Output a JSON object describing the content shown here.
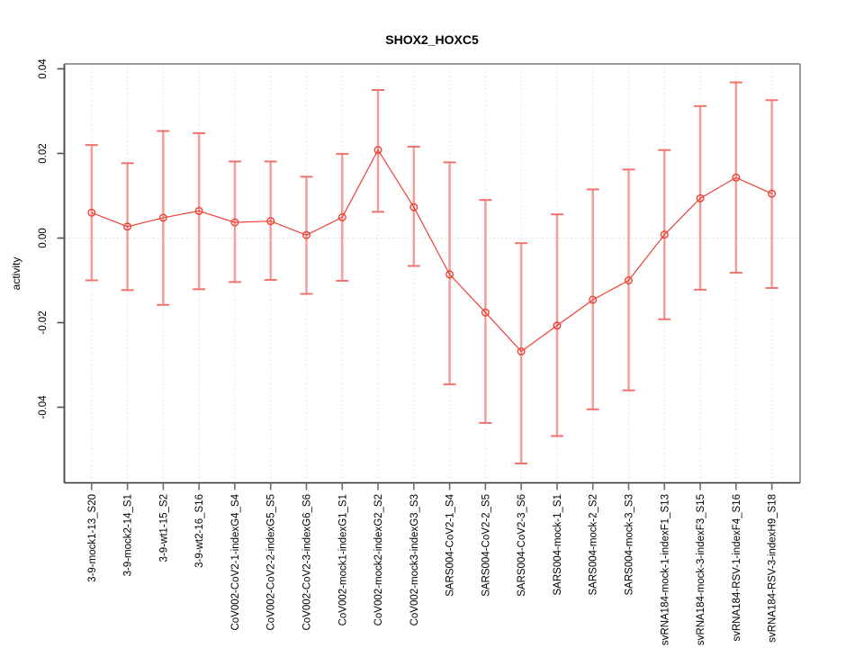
{
  "chart_data": {
    "type": "line",
    "title": "SHOX2_HOXC5",
    "xlabel": "",
    "ylabel": "activity",
    "ylim": [
      -0.058,
      0.041
    ],
    "yticks": [
      0.04,
      0.02,
      0.0,
      -0.02,
      -0.04
    ],
    "ytick_labels": [
      "0.04",
      "0.02",
      "0.00",
      "-0.02",
      "-0.04"
    ],
    "grid": "dotted vertical gridline at each category, dotted horizontal line at zero",
    "legend": "none",
    "marker": "open-circle",
    "error_bars": true,
    "categories": [
      "3-9-mock1-13_S20",
      "3-9-mock2-14_S1",
      "3-9-wt1-15_S2",
      "3-9-wt2-16_S16",
      "CoV002-CoV2-1-indexG4_S4",
      "CoV002-CoV2-2-indexG5_S5",
      "CoV002-CoV2-3-indexG6_S6",
      "CoV002-mock1-indexG1_S1",
      "CoV002-mock2-indexG2_S2",
      "CoV002-mock3-indexG3_S3",
      "SARS004-CoV2-1_S4",
      "SARS004-CoV2-2_S5",
      "SARS004-CoV2-3_S6",
      "SARS004-mock-1_S1",
      "SARS004-mock-2_S2",
      "SARS004-mock-3_S3",
      "svRNA184-mock-1-indexF1_S13",
      "svRNA184-mock-3-indexF3_S15",
      "svRNA184-RSV-1-indexF4_S16",
      "svRNA184-RSV-3-indexH9_S18"
    ],
    "series": [
      {
        "name": "activity",
        "values": [
          0.006,
          0.0027,
          0.0048,
          0.0064,
          0.0037,
          0.004,
          0.0007,
          0.0049,
          0.0208,
          0.0073,
          -0.0086,
          -0.0176,
          -0.0268,
          -0.0207,
          -0.0146,
          -0.01,
          0.0008,
          0.0094,
          0.0143,
          0.0105
        ],
        "upper": [
          0.022,
          0.0177,
          0.0253,
          0.0248,
          0.0181,
          0.0181,
          0.0145,
          0.0199,
          0.035,
          0.0216,
          0.0179,
          0.009,
          -0.0012,
          0.0056,
          0.0115,
          0.0162,
          0.0208,
          0.0312,
          0.0368,
          0.0326
        ],
        "lower": [
          -0.01,
          -0.0123,
          -0.0158,
          -0.0121,
          -0.0104,
          -0.0099,
          -0.0132,
          -0.0101,
          0.0062,
          -0.0066,
          -0.0346,
          -0.0437,
          -0.0533,
          -0.0468,
          -0.0405,
          -0.036,
          -0.0192,
          -0.0122,
          -0.0082,
          -0.0118
        ]
      }
    ]
  },
  "colors": {
    "point_line": "#ee4137",
    "error_bar": "#f59e99",
    "error_cap": "#f0736c",
    "grid": "#dcdcdc",
    "zero_line": "#dcdcdc",
    "box_light": "#999999",
    "axis_left": "#4f4f4f",
    "axis_bottom": "#2b2b2b",
    "tick_color": "#6e6e6e",
    "text": "#000000",
    "background": "#ffffff"
  }
}
